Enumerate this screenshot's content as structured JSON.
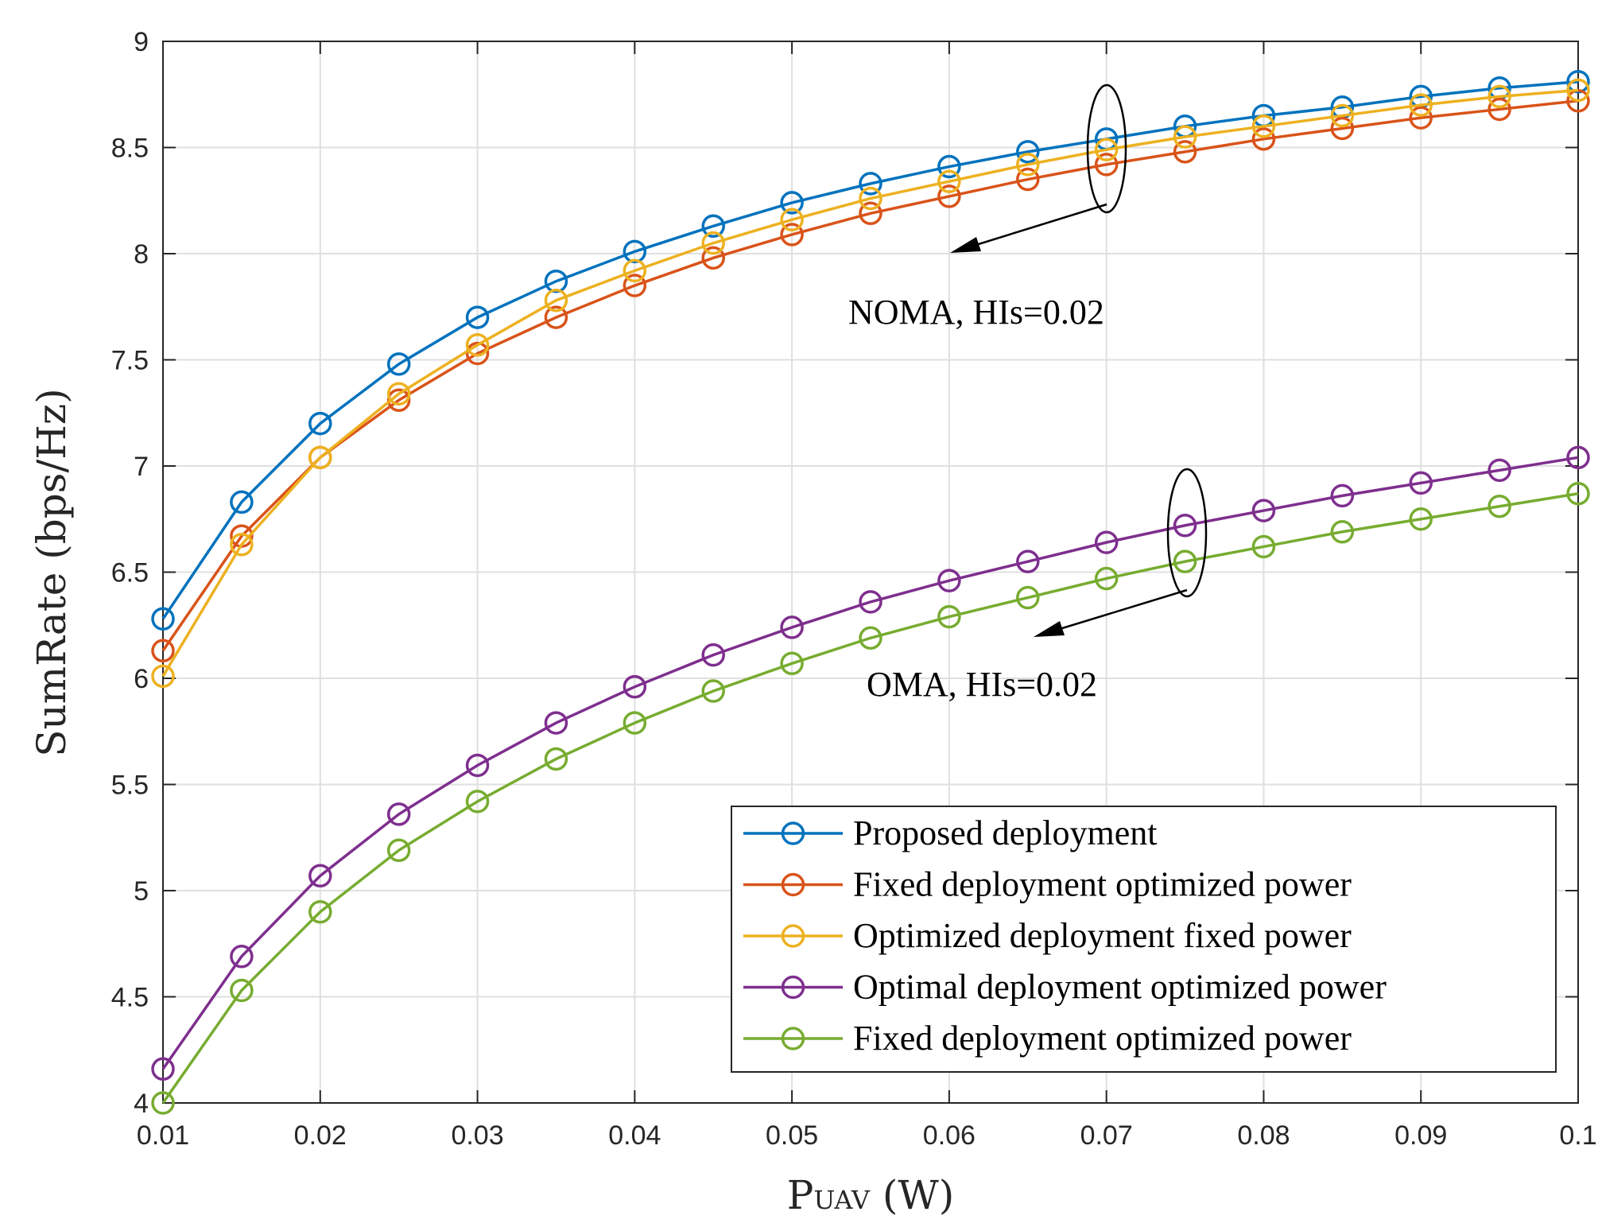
{
  "chart_data": {
    "type": "line",
    "xlabel_main": "P",
    "xlabel_sub": "UAV",
    "xlabel_unit": " (W)",
    "ylabel": "SumRate (bps/Hz)",
    "xlim": [
      0.01,
      0.1
    ],
    "ylim": [
      4,
      9
    ],
    "grid": true,
    "legend_position": "bottom-right",
    "x": [
      0.01,
      0.015,
      0.02,
      0.025,
      0.03,
      0.035,
      0.04,
      0.045,
      0.05,
      0.055,
      0.06,
      0.065,
      0.07,
      0.075,
      0.08,
      0.085,
      0.09,
      0.095,
      0.1
    ],
    "x_ticks": [
      0.01,
      0.02,
      0.03,
      0.04,
      0.05,
      0.06,
      0.07,
      0.08,
      0.09,
      0.1
    ],
    "x_tick_labels": [
      "0.01",
      "0.02",
      "0.03",
      "0.04",
      "0.05",
      "0.06",
      "0.07",
      "0.08",
      "0.09",
      "0.1"
    ],
    "y_ticks": [
      4,
      4.5,
      5,
      5.5,
      6,
      6.5,
      7,
      7.5,
      8,
      8.5,
      9
    ],
    "y_tick_labels": [
      "4",
      "4.5",
      "5",
      "5.5",
      "6",
      "6.5",
      "7",
      "7.5",
      "8",
      "8.5",
      "9"
    ],
    "series": [
      {
        "name": "Proposed deployment",
        "color": "#0072bd",
        "marker": "circle",
        "values": [
          6.28,
          6.83,
          7.2,
          7.48,
          7.7,
          7.87,
          8.01,
          8.13,
          8.24,
          8.33,
          8.41,
          8.48,
          8.54,
          8.6,
          8.65,
          8.69,
          8.74,
          8.78,
          8.81
        ]
      },
      {
        "name": "Fixed deployment optimized power",
        "color": "#d95319",
        "marker": "circle",
        "values": [
          6.13,
          6.67,
          7.04,
          7.31,
          7.53,
          7.7,
          7.85,
          7.98,
          8.09,
          8.19,
          8.27,
          8.35,
          8.42,
          8.48,
          8.54,
          8.59,
          8.64,
          8.68,
          8.72
        ]
      },
      {
        "name": "Optimized deployment fixed power",
        "color": "#edb120",
        "marker": "circle",
        "values": [
          6.01,
          6.63,
          7.04,
          7.34,
          7.57,
          7.78,
          7.92,
          8.05,
          8.16,
          8.26,
          8.34,
          8.42,
          8.49,
          8.55,
          8.6,
          8.65,
          8.7,
          8.74,
          8.77
        ]
      },
      {
        "name": "Optimal deployment optimized power",
        "color": "#7e2f8e",
        "marker": "circle",
        "values": [
          4.16,
          4.69,
          5.07,
          5.36,
          5.59,
          5.79,
          5.96,
          6.11,
          6.24,
          6.36,
          6.46,
          6.55,
          6.64,
          6.72,
          6.79,
          6.86,
          6.92,
          6.98,
          7.04
        ]
      },
      {
        "name": "Fixed deployment optimized power",
        "color": "#77ac30",
        "marker": "circle",
        "values": [
          4.0,
          4.53,
          4.9,
          5.19,
          5.42,
          5.62,
          5.79,
          5.94,
          6.07,
          6.19,
          6.29,
          6.38,
          6.47,
          6.55,
          6.62,
          6.69,
          6.75,
          6.81,
          6.87
        ]
      }
    ],
    "annotations": [
      {
        "text": "NOMA, HIs=0.02",
        "anchor_x": 0.07,
        "anchor_y": 8.2
      },
      {
        "text": "OMA, HIs=0.02",
        "anchor_x": 0.07,
        "anchor_y": 6.2
      }
    ]
  }
}
